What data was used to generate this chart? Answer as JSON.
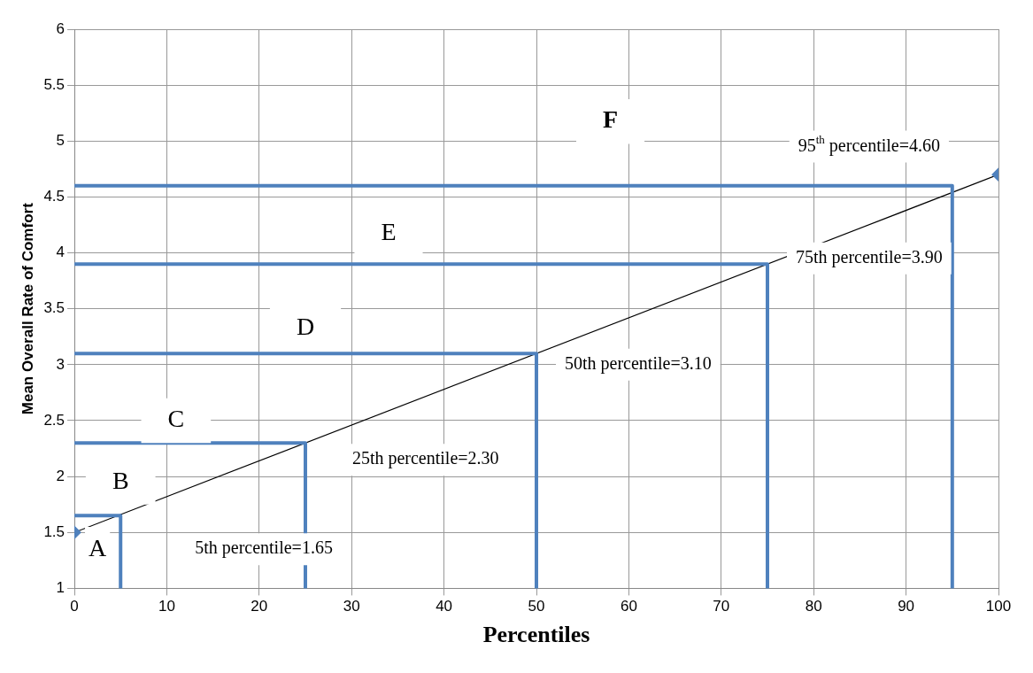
{
  "chart_data": {
    "type": "line",
    "xlabel": "Percentiles",
    "ylabel": "Mean Overall Rate of Comfort",
    "xlim": [
      0,
      100
    ],
    "xticks": [
      0,
      10,
      20,
      30,
      40,
      50,
      60,
      70,
      80,
      90,
      100
    ],
    "ylim": [
      1,
      6
    ],
    "yticks": [
      1,
      1.5,
      2,
      2.5,
      3,
      3.5,
      4,
      4.5,
      5,
      5.5,
      6
    ],
    "grid": true,
    "legend": false,
    "line_style": "solid",
    "series": [
      {
        "x": [
          0,
          5,
          5
        ],
        "values": [
          1.65,
          1.65,
          1
        ],
        "color": "#4f81bd",
        "marker": "none"
      },
      {
        "x": [
          0,
          25,
          25
        ],
        "values": [
          2.3,
          2.3,
          1
        ],
        "color": "#4f81bd",
        "marker": "none"
      },
      {
        "x": [
          0,
          50,
          50
        ],
        "values": [
          3.1,
          3.1,
          1
        ],
        "color": "#4f81bd",
        "marker": "none"
      },
      {
        "x": [
          0,
          75,
          75
        ],
        "values": [
          3.9,
          3.9,
          1
        ],
        "color": "#4f81bd",
        "marker": "none"
      },
      {
        "x": [
          0,
          95,
          95
        ],
        "values": [
          4.6,
          4.6,
          1
        ],
        "color": "#4f81bd",
        "marker": "none"
      },
      {
        "x": [
          0,
          100
        ],
        "values": [
          1.5,
          4.7
        ],
        "color": "#000000",
        "marker": "diamond"
      }
    ],
    "annotations": [
      "A",
      "B",
      "C",
      "D",
      "E",
      "F",
      "5th percentile=1.65",
      "25th percentile=2.30",
      "50th percentile=3.10",
      "75th percentile=3.90",
      "95$^{th}$ percentile=4.60"
    ]
  }
}
